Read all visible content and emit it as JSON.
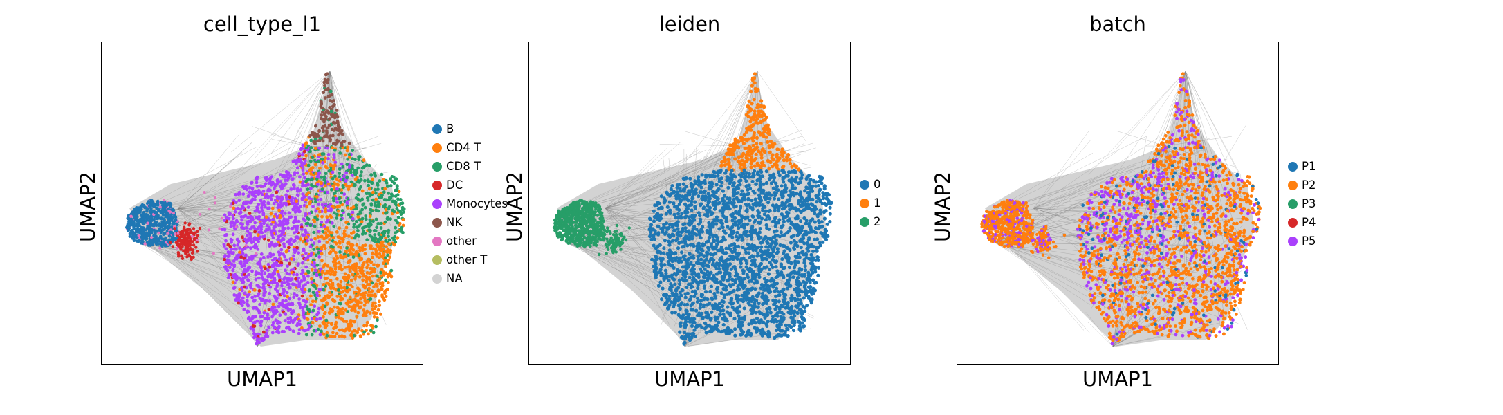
{
  "figure": {
    "xlabel": "UMAP1",
    "ylabel": "UMAP2"
  },
  "chart_data": [
    {
      "type": "scatter",
      "title": "cell_type_l1",
      "xlabel": "UMAP1",
      "ylabel": "UMAP2",
      "axis_ticks": false,
      "legend_placement": "right-outside",
      "edges_shown": true,
      "edge_color": "#808080",
      "series": [
        {
          "name": "B",
          "color": "#1f77b4"
        },
        {
          "name": "CD4 T",
          "color": "#ff7f0e"
        },
        {
          "name": "CD8 T",
          "color": "#279e68"
        },
        {
          "name": "DC",
          "color": "#d62728"
        },
        {
          "name": "Monocytes",
          "color": "#aa40fc"
        },
        {
          "name": "NK",
          "color": "#8c564b"
        },
        {
          "name": "other",
          "color": "#e377c2"
        },
        {
          "name": "other T",
          "color": "#b5bd61"
        },
        {
          "name": "NA",
          "color": "#d3d3d3"
        }
      ]
    },
    {
      "type": "scatter",
      "title": "leiden",
      "xlabel": "UMAP1",
      "ylabel": "UMAP2",
      "axis_ticks": false,
      "legend_placement": "right-outside",
      "edges_shown": true,
      "edge_color": "#808080",
      "series": [
        {
          "name": "0",
          "color": "#1f77b4"
        },
        {
          "name": "1",
          "color": "#ff7f0e"
        },
        {
          "name": "2",
          "color": "#279e68"
        }
      ]
    },
    {
      "type": "scatter",
      "title": "batch",
      "xlabel": "UMAP1",
      "ylabel": "UMAP2",
      "axis_ticks": false,
      "legend_placement": "right-outside",
      "edges_shown": true,
      "edge_color": "#808080",
      "series": [
        {
          "name": "P1",
          "color": "#1f77b4"
        },
        {
          "name": "P2",
          "color": "#ff7f0e"
        },
        {
          "name": "P3",
          "color": "#279e68"
        },
        {
          "name": "P4",
          "color": "#d62728"
        },
        {
          "name": "P5",
          "color": "#aa40fc"
        }
      ]
    }
  ]
}
